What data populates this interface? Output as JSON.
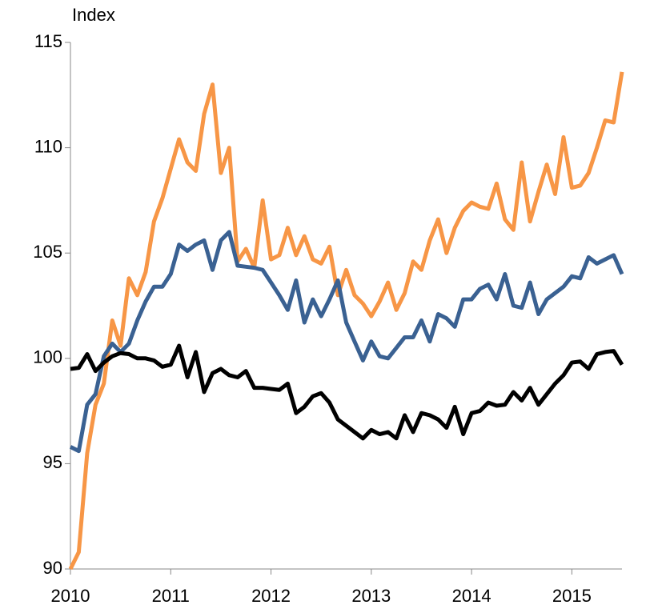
{
  "chart_data": {
    "type": "line",
    "y_label": "Index",
    "x": [
      2010,
      2010.083,
      2010.167,
      2010.25,
      2010.333,
      2010.417,
      2010.5,
      2010.583,
      2010.667,
      2010.75,
      2010.833,
      2010.917,
      2011,
      2011.083,
      2011.167,
      2011.25,
      2011.333,
      2011.417,
      2011.5,
      2011.583,
      2011.667,
      2011.75,
      2011.833,
      2011.917,
      2012,
      2012.083,
      2012.167,
      2012.25,
      2012.333,
      2012.417,
      2012.5,
      2012.583,
      2012.667,
      2012.75,
      2012.833,
      2012.917,
      2013,
      2013.083,
      2013.167,
      2013.25,
      2013.333,
      2013.417,
      2013.5,
      2013.583,
      2013.667,
      2013.75,
      2013.833,
      2013.917,
      2014,
      2014.083,
      2014.167,
      2014.25,
      2014.333,
      2014.417,
      2014.5,
      2014.583,
      2014.667,
      2014.75,
      2014.833,
      2014.917,
      2015,
      2015.083,
      2015.167,
      2015.25,
      2015.333,
      2015.417,
      2015.5
    ],
    "series": [
      {
        "color": "#f79646",
        "values": [
          90.0,
          90.8,
          95.5,
          97.8,
          98.8,
          101.8,
          100.6,
          103.8,
          103.0,
          104.1,
          106.5,
          107.6,
          109.0,
          110.4,
          109.3,
          108.9,
          111.6,
          113.0,
          108.8,
          110.0,
          104.6,
          105.2,
          104.3,
          107.5,
          104.7,
          104.9,
          106.2,
          104.9,
          105.8,
          104.7,
          104.5,
          105.3,
          103.0,
          104.2,
          103.0,
          102.6,
          102.0,
          102.7,
          103.6,
          102.3,
          103.1,
          104.6,
          104.2,
          105.6,
          106.6,
          105.0,
          106.2,
          107.0,
          107.4,
          107.2,
          107.1,
          108.3,
          106.6,
          106.1,
          109.3,
          106.5,
          107.9,
          109.2,
          107.8,
          110.5,
          108.1,
          108.2,
          108.8,
          110.0,
          111.3,
          111.2,
          113.6
        ]
      },
      {
        "color": "#3a6192",
        "values": [
          95.8,
          95.6,
          97.8,
          98.3,
          100.1,
          100.7,
          100.3,
          100.7,
          101.8,
          102.7,
          103.4,
          103.4,
          104.0,
          105.4,
          105.1,
          105.4,
          105.6,
          104.2,
          105.6,
          106.0,
          104.4,
          104.35,
          104.3,
          104.2,
          103.6,
          103.0,
          102.3,
          103.7,
          101.7,
          102.8,
          102.0,
          102.8,
          103.7,
          101.7,
          100.8,
          99.9,
          100.8,
          100.1,
          100.0,
          100.5,
          101.0,
          101.0,
          101.8,
          100.8,
          102.1,
          101.9,
          101.5,
          102.8,
          102.8,
          103.3,
          103.5,
          102.8,
          104.0,
          102.5,
          102.4,
          103.6,
          102.1,
          102.8,
          103.1,
          103.4,
          103.9,
          103.8,
          104.8,
          104.5,
          104.7,
          104.9,
          104.0
        ]
      },
      {
        "color": "#000000",
        "values": [
          99.5,
          99.55,
          100.2,
          99.4,
          99.8,
          100.1,
          100.25,
          100.2,
          100.0,
          100.0,
          99.9,
          99.6,
          99.7,
          100.6,
          99.1,
          100.3,
          98.4,
          99.3,
          99.5,
          99.2,
          99.1,
          99.4,
          98.6,
          98.6,
          98.55,
          98.5,
          98.8,
          97.4,
          97.7,
          98.2,
          98.35,
          97.9,
          97.1,
          96.8,
          96.5,
          96.2,
          96.6,
          96.4,
          96.5,
          96.2,
          97.3,
          96.5,
          97.4,
          97.3,
          97.1,
          96.7,
          97.7,
          96.4,
          97.4,
          97.5,
          97.9,
          97.75,
          97.8,
          98.4,
          98.0,
          98.6,
          97.8,
          98.3,
          98.8,
          99.2,
          99.8,
          99.85,
          99.5,
          100.2,
          100.3,
          100.35,
          99.7
        ]
      }
    ],
    "xlim": [
      2010,
      2015.5
    ],
    "xticks": [
      2010,
      2011,
      2012,
      2013,
      2014,
      2015
    ],
    "ylim": [
      90,
      115
    ],
    "yticks": [
      90,
      95,
      100,
      105,
      110,
      115
    ]
  }
}
